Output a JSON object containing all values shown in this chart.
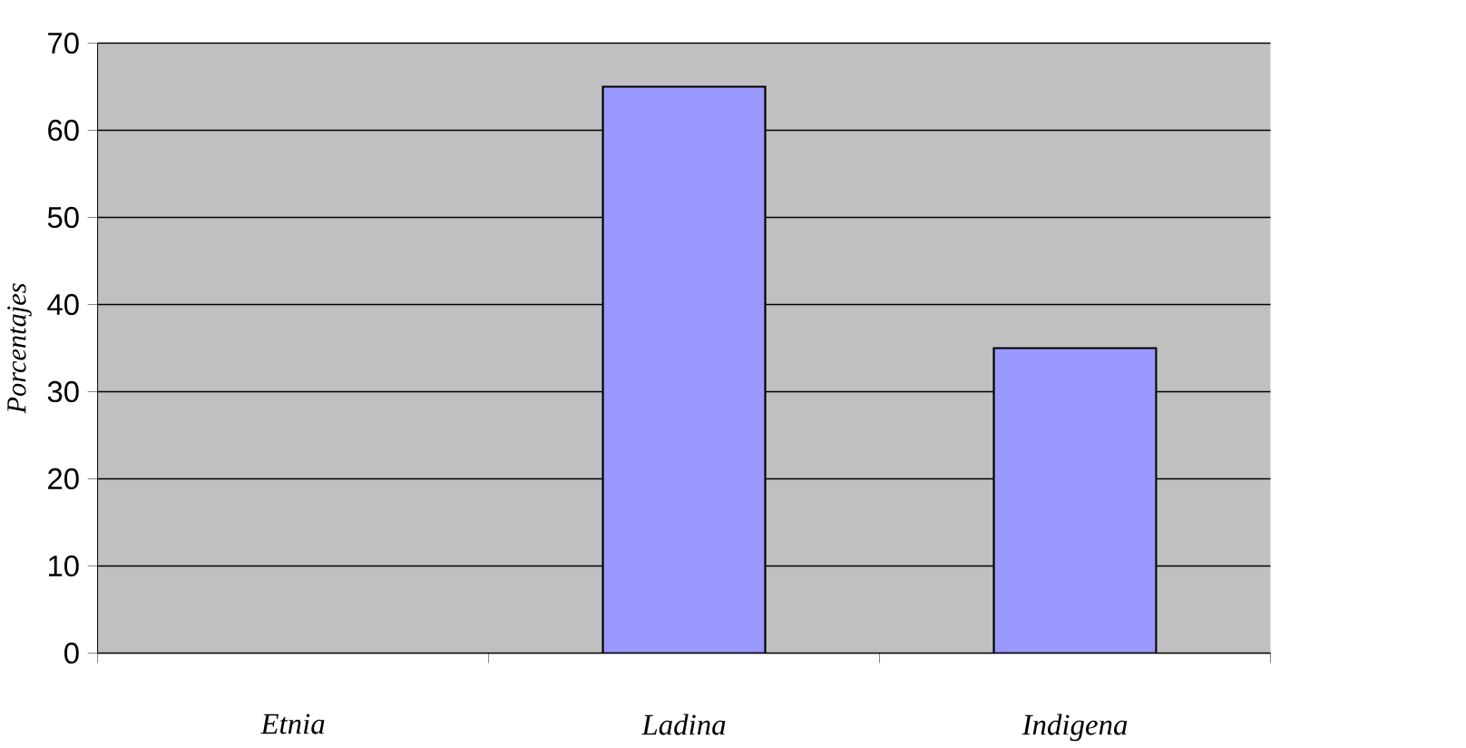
{
  "chart_data": {
    "type": "bar",
    "ylabel": "Porcentajes",
    "categories": [
      "Etnia",
      "Ladina",
      "Indigena"
    ],
    "values": [
      null,
      65,
      35
    ],
    "color": "#9999ff",
    "ylim": [
      0,
      70
    ],
    "yticks": [
      0,
      10,
      20,
      30,
      40,
      50,
      60,
      70
    ],
    "grid": "y"
  }
}
